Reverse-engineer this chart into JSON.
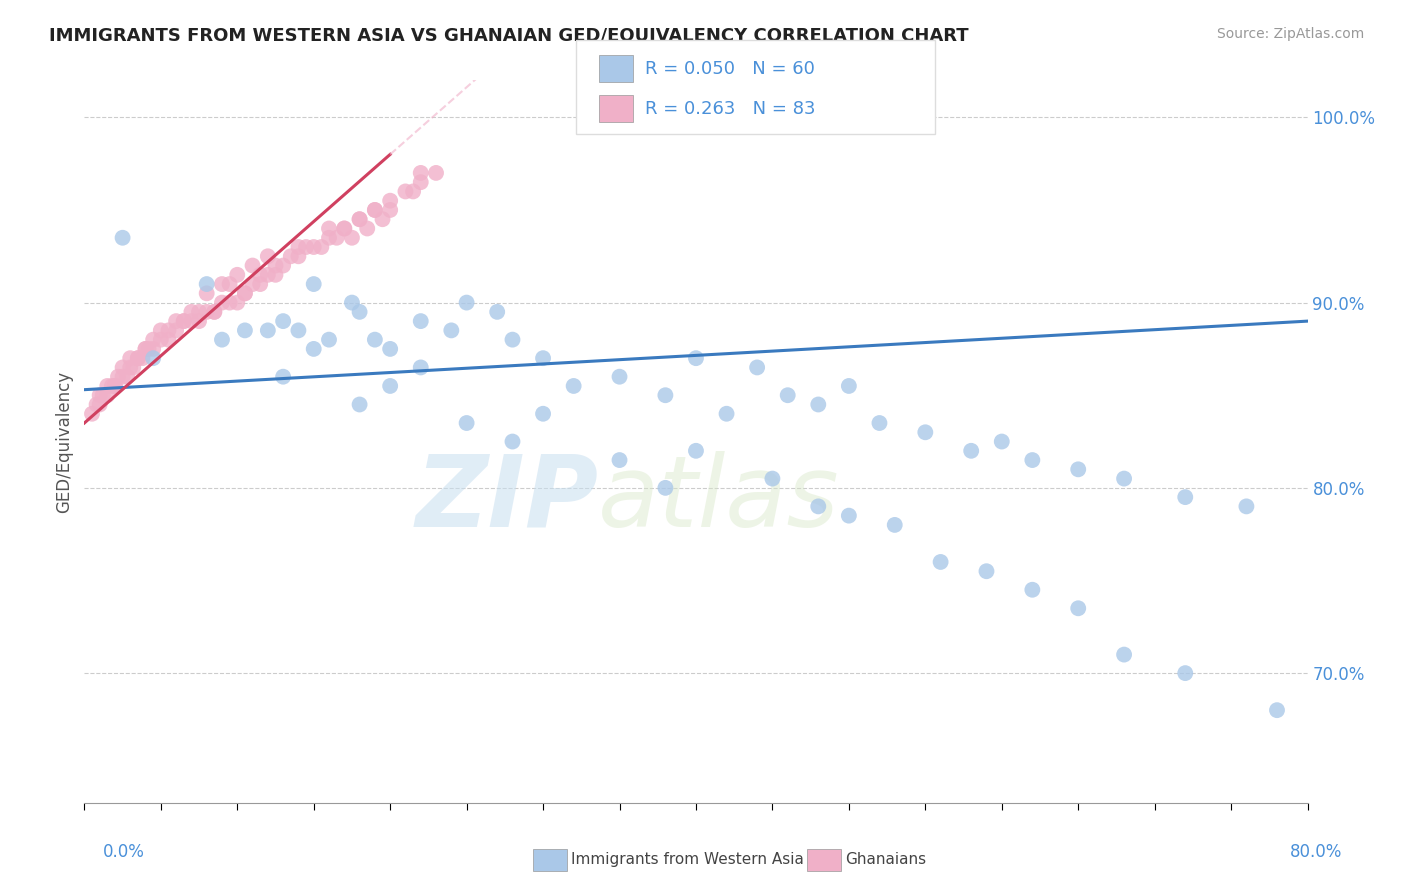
{
  "title": "IMMIGRANTS FROM WESTERN ASIA VS GHANAIAN GED/EQUIVALENCY CORRELATION CHART",
  "source": "Source: ZipAtlas.com",
  "ylabel": "GED/Equivalency",
  "xmin": 0.0,
  "xmax": 80.0,
  "ymin": 63.0,
  "ymax": 102.0,
  "yticks": [
    70.0,
    80.0,
    90.0,
    100.0
  ],
  "ytick_labels": [
    "70.0%",
    "80.0%",
    "90.0%",
    "100.0%"
  ],
  "legend_r_blue": "R = 0.050",
  "legend_n_blue": "N = 60",
  "legend_r_pink": "R = 0.263",
  "legend_n_pink": "N = 83",
  "legend_label_blue": "Immigrants from Western Asia",
  "legend_label_pink": "Ghanaians",
  "color_blue": "#aac8e8",
  "color_pink": "#f0b0c8",
  "color_trend_blue": "#3a7abf",
  "color_trend_pink": "#d04060",
  "color_axis_labels": "#4a90d9",
  "watermark_zip": "ZIP",
  "watermark_atlas": "atlas",
  "background_color": "#ffffff",
  "grid_color": "#cccccc",
  "blue_trend_x0": 0.0,
  "blue_trend_y0": 85.3,
  "blue_trend_x1": 80.0,
  "blue_trend_y1": 89.0,
  "pink_trend_x0": 0.0,
  "pink_trend_y0": 83.5,
  "pink_trend_x1": 20.0,
  "pink_trend_y1": 98.0,
  "blue_scatter_x": [
    2.5,
    4.5,
    8.0,
    9.0,
    10.5,
    12.0,
    13.0,
    14.0,
    15.0,
    16.0,
    17.5,
    18.0,
    19.0,
    20.0,
    22.0,
    24.0,
    25.0,
    27.0,
    28.0,
    30.0,
    32.0,
    35.0,
    38.0,
    40.0,
    42.0,
    44.0,
    46.0,
    48.0,
    50.0,
    52.0,
    55.0,
    58.0,
    60.0,
    62.0,
    65.0,
    68.0,
    72.0,
    76.0,
    13.0,
    15.0,
    18.0,
    20.0,
    22.0,
    25.0,
    28.0,
    30.0,
    35.0,
    38.0,
    40.0,
    45.0,
    48.0,
    50.0,
    53.0,
    56.0,
    59.0,
    62.0,
    65.0,
    68.0,
    72.0,
    78.0
  ],
  "blue_scatter_y": [
    93.5,
    87.0,
    91.0,
    88.0,
    88.5,
    88.5,
    89.0,
    88.5,
    91.0,
    88.0,
    90.0,
    89.5,
    88.0,
    87.5,
    89.0,
    88.5,
    90.0,
    89.5,
    88.0,
    87.0,
    85.5,
    86.0,
    85.0,
    87.0,
    84.0,
    86.5,
    85.0,
    84.5,
    85.5,
    83.5,
    83.0,
    82.0,
    82.5,
    81.5,
    81.0,
    80.5,
    79.5,
    79.0,
    86.0,
    87.5,
    84.5,
    85.5,
    86.5,
    83.5,
    82.5,
    84.0,
    81.5,
    80.0,
    82.0,
    80.5,
    79.0,
    78.5,
    78.0,
    76.0,
    75.5,
    74.5,
    73.5,
    71.0,
    70.0,
    68.0
  ],
  "pink_scatter_x": [
    0.5,
    0.8,
    1.0,
    1.2,
    1.5,
    1.8,
    2.0,
    2.2,
    2.5,
    2.8,
    3.0,
    3.2,
    3.5,
    3.8,
    4.0,
    4.2,
    4.5,
    5.0,
    5.5,
    6.0,
    6.5,
    7.0,
    7.5,
    8.0,
    8.5,
    9.0,
    9.5,
    10.0,
    10.5,
    11.0,
    11.5,
    12.0,
    12.5,
    13.0,
    14.0,
    15.0,
    16.0,
    17.0,
    18.0,
    19.0,
    20.0,
    21.0,
    22.0,
    23.0,
    1.0,
    1.5,
    2.0,
    2.5,
    3.0,
    4.0,
    5.0,
    6.0,
    7.0,
    8.0,
    9.0,
    10.0,
    11.0,
    12.0,
    14.0,
    16.0,
    18.0,
    20.0,
    4.5,
    7.5,
    10.5,
    14.5,
    17.5,
    19.5,
    21.5,
    5.5,
    8.5,
    12.5,
    15.5,
    18.5,
    3.5,
    6.5,
    9.5,
    13.5,
    16.5,
    19.0,
    22.0,
    11.5,
    17.0
  ],
  "pink_scatter_y": [
    84.0,
    84.5,
    85.0,
    85.0,
    85.5,
    85.5,
    85.5,
    86.0,
    86.0,
    86.0,
    86.5,
    86.5,
    87.0,
    87.0,
    87.5,
    87.5,
    87.5,
    88.0,
    88.0,
    88.5,
    89.0,
    89.0,
    89.5,
    89.5,
    89.5,
    90.0,
    90.0,
    90.0,
    90.5,
    91.0,
    91.0,
    91.5,
    91.5,
    92.0,
    92.5,
    93.0,
    93.5,
    94.0,
    94.5,
    95.0,
    95.5,
    96.0,
    96.5,
    97.0,
    84.5,
    85.0,
    85.5,
    86.5,
    87.0,
    87.5,
    88.5,
    89.0,
    89.5,
    90.5,
    91.0,
    91.5,
    92.0,
    92.5,
    93.0,
    94.0,
    94.5,
    95.0,
    88.0,
    89.0,
    90.5,
    93.0,
    93.5,
    94.5,
    96.0,
    88.5,
    89.5,
    92.0,
    93.0,
    94.0,
    87.0,
    89.0,
    91.0,
    92.5,
    93.5,
    95.0,
    97.0,
    91.5,
    94.0
  ]
}
